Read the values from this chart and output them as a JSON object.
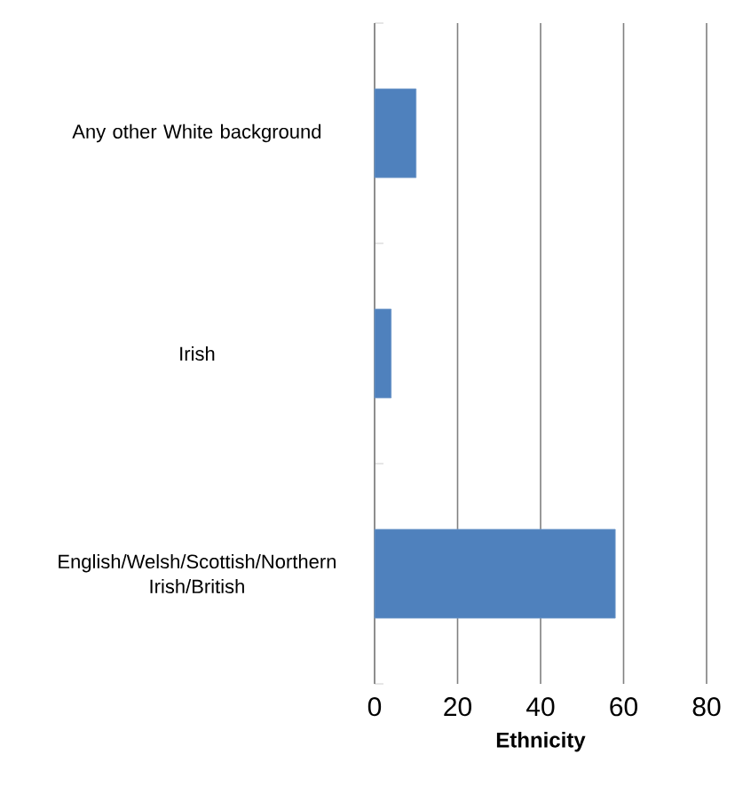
{
  "chart_data": {
    "type": "bar",
    "orientation": "horizontal",
    "categories": [
      "Any other White background",
      "Irish",
      "English/Welsh/Scottish/Northern Irish/British"
    ],
    "values": [
      10,
      4,
      58
    ],
    "color": "#4f81bd",
    "xlim": [
      0,
      80
    ],
    "xticks": [
      0,
      20,
      40,
      60,
      80
    ],
    "grid": "x",
    "xlabel": "Ethnicity"
  }
}
